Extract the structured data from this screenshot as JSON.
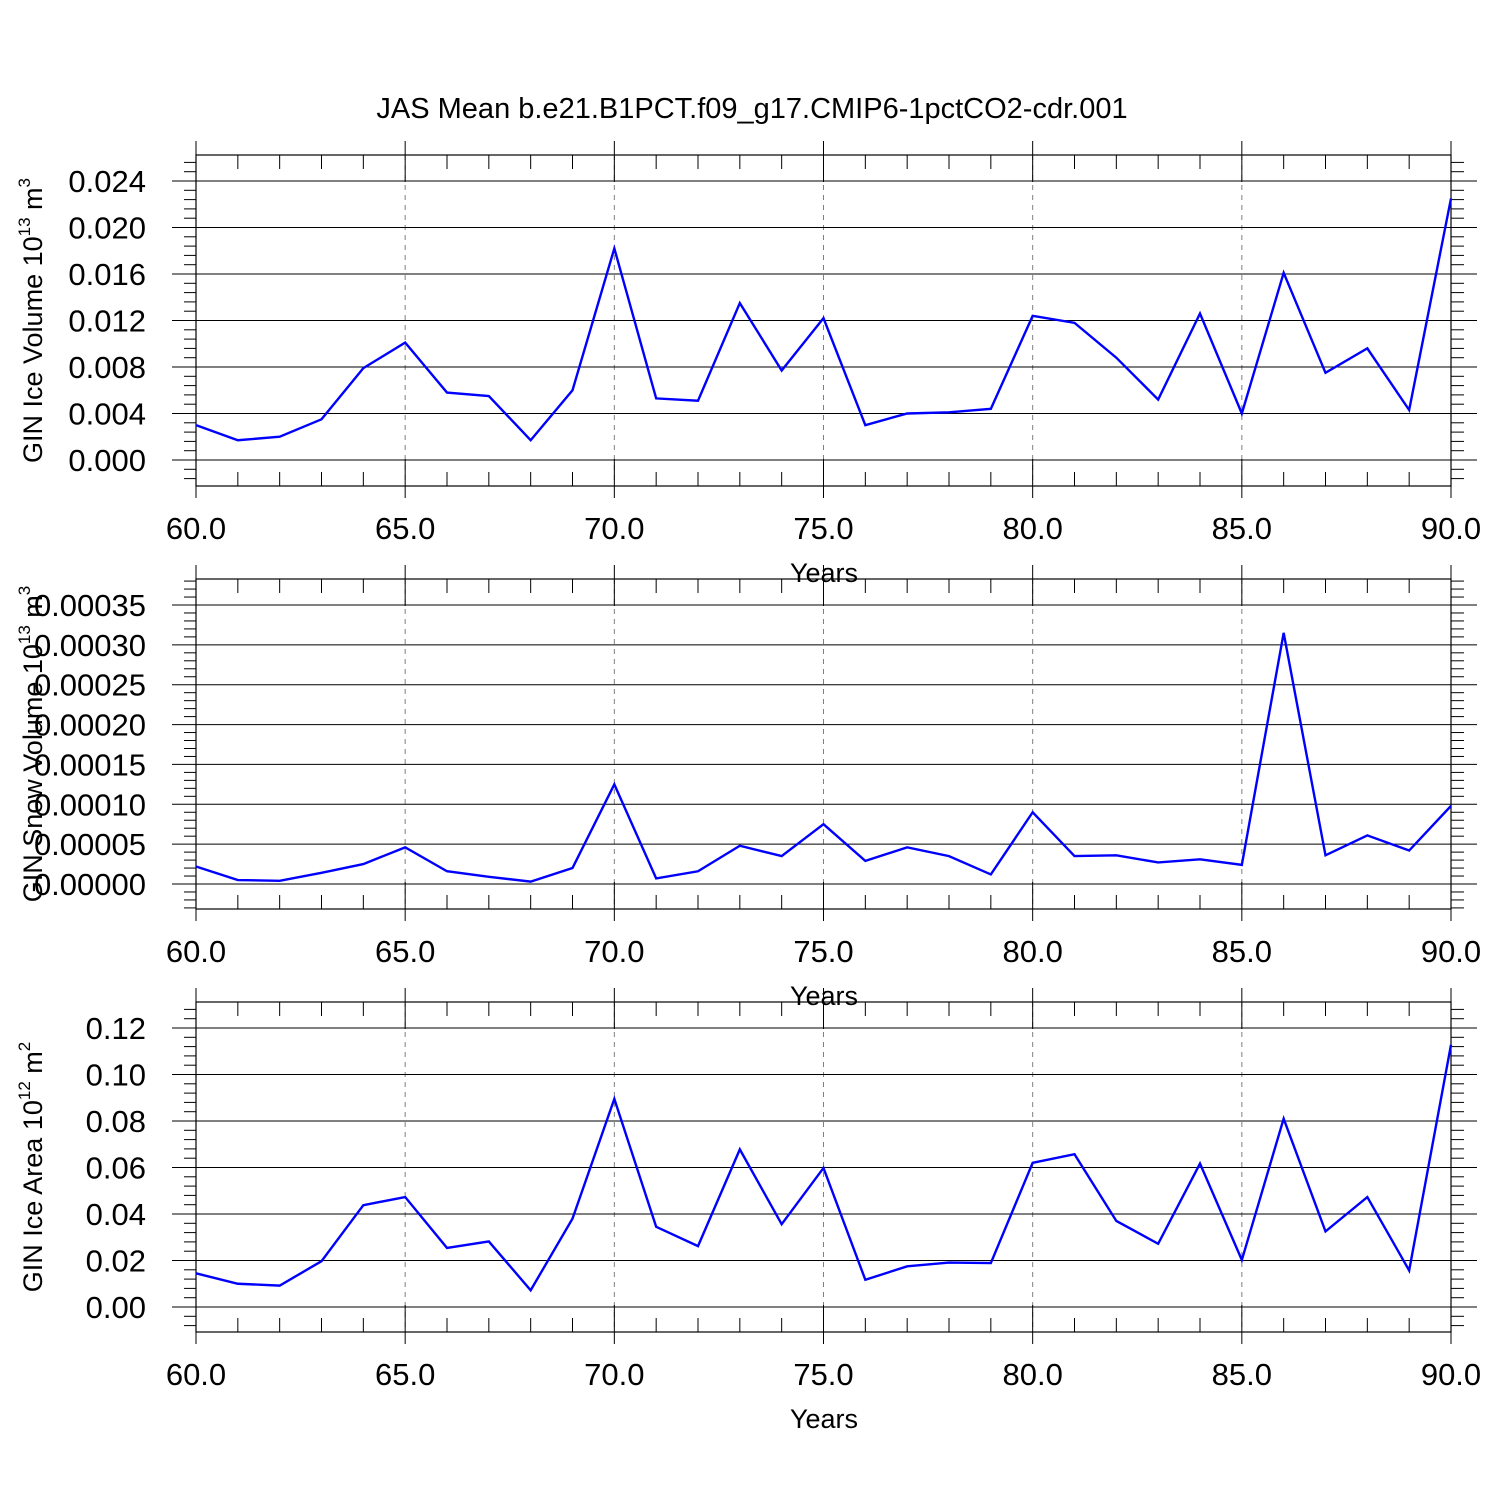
{
  "title": "JAS Mean b.e21.B1PCT.f09_g17.CMIP6-1pctCO2-cdr.001",
  "colors": {
    "line": "#0000ff",
    "axis": "#000000",
    "grid": "#808080",
    "background": "#ffffff"
  },
  "chart_data": [
    {
      "type": "line",
      "ylabel": {
        "main": "GIN Ice Volume 10",
        "sup": "13",
        "unit": " m",
        "unit_sup": "3"
      },
      "xlabel": "Years",
      "xlim": [
        60,
        90
      ],
      "ylim": [
        0,
        0.024
      ],
      "yticks": [
        "0.000",
        "0.004",
        "0.008",
        "0.012",
        "0.016",
        "0.020",
        "0.024"
      ],
      "xticks": [
        "60.0",
        "65.0",
        "70.0",
        "75.0",
        "80.0",
        "85.0",
        "90.0"
      ],
      "grid": "vertical-dashed",
      "x": [
        60,
        61,
        62,
        63,
        64,
        65,
        66,
        67,
        68,
        69,
        70,
        71,
        72,
        73,
        74,
        75,
        76,
        77,
        78,
        79,
        80,
        81,
        82,
        83,
        84,
        85,
        86,
        87,
        88,
        89,
        90
      ],
      "series": [
        {
          "values": [
            0.003,
            0.0017,
            0.002,
            0.0035,
            0.0079,
            0.0101,
            0.0058,
            0.0055,
            0.0017,
            0.006,
            0.0182,
            0.0053,
            0.0051,
            0.0135,
            0.0077,
            0.0122,
            0.003,
            0.004,
            0.0041,
            0.0044,
            0.0124,
            0.0118,
            0.0088,
            0.0052,
            0.0126,
            0.004,
            0.0161,
            0.0075,
            0.0096,
            0.0043,
            0.0225
          ]
        }
      ]
    },
    {
      "type": "line",
      "ylabel": {
        "main": "GIN Snow Volume 10",
        "sup": "13",
        "unit": " m",
        "unit_sup": "3"
      },
      "xlabel": "Years",
      "xlim": [
        60,
        90
      ],
      "ylim": [
        0,
        0.00035
      ],
      "yticks": [
        "0.00000",
        "0.00005",
        "0.00010",
        "0.00015",
        "0.00020",
        "0.00025",
        "0.00030",
        "0.00035"
      ],
      "xticks": [
        "60.0",
        "65.0",
        "70.0",
        "75.0",
        "80.0",
        "85.0",
        "90.0"
      ],
      "grid": "vertical-dashed",
      "x": [
        60,
        61,
        62,
        63,
        64,
        65,
        66,
        67,
        68,
        69,
        70,
        71,
        72,
        73,
        74,
        75,
        76,
        77,
        78,
        79,
        80,
        81,
        82,
        83,
        84,
        85,
        86,
        87,
        88,
        89,
        90
      ],
      "series": [
        {
          "values": [
            2.2e-05,
            5e-06,
            4e-06,
            1.4e-05,
            2.5e-05,
            4.6e-05,
            1.6e-05,
            9e-06,
            3e-06,
            2e-05,
            0.000125,
            7e-06,
            1.6e-05,
            4.8e-05,
            3.5e-05,
            7.5e-05,
            2.9e-05,
            4.6e-05,
            3.5e-05,
            1.2e-05,
            9e-05,
            3.5e-05,
            3.6e-05,
            2.7e-05,
            3.1e-05,
            2.4e-05,
            0.000315,
            3.6e-05,
            6.1e-05,
            4.2e-05,
            9.8e-05
          ]
        }
      ]
    },
    {
      "type": "line",
      "ylabel": {
        "main": "GIN Ice Area 10",
        "sup": "12",
        "unit": " m",
        "unit_sup": "2"
      },
      "xlabel": "Years",
      "xlim": [
        60,
        90
      ],
      "ylim": [
        0,
        0.12
      ],
      "yticks": [
        "0.00",
        "0.02",
        "0.04",
        "0.06",
        "0.08",
        "0.10",
        "0.12"
      ],
      "xticks": [
        "60.0",
        "65.0",
        "70.0",
        "75.0",
        "80.0",
        "85.0",
        "90.0"
      ],
      "grid": "vertical-dashed",
      "x": [
        60,
        61,
        62,
        63,
        64,
        65,
        66,
        67,
        68,
        69,
        70,
        71,
        72,
        73,
        74,
        75,
        76,
        77,
        78,
        79,
        80,
        81,
        82,
        83,
        84,
        85,
        86,
        87,
        88,
        89,
        90
      ],
      "series": [
        {
          "values": [
            0.0145,
            0.01,
            0.0092,
            0.0197,
            0.0438,
            0.0473,
            0.0254,
            0.0282,
            0.0072,
            0.038,
            0.0895,
            0.0345,
            0.0262,
            0.0678,
            0.0356,
            0.0598,
            0.0117,
            0.0175,
            0.0191,
            0.0189,
            0.062,
            0.0657,
            0.037,
            0.0272,
            0.0617,
            0.0202,
            0.081,
            0.0325,
            0.0473,
            0.0157,
            0.1128
          ]
        }
      ]
    }
  ]
}
